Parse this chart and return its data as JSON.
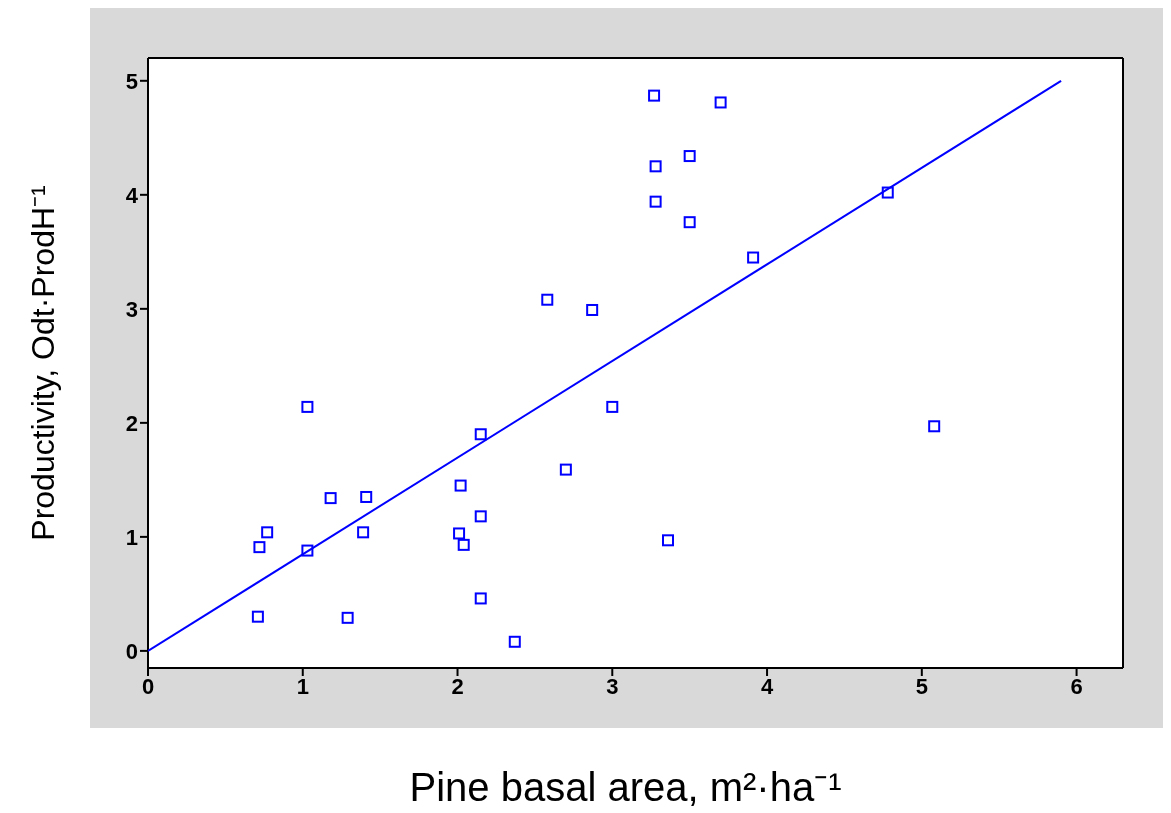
{
  "chart_data": {
    "type": "scatter",
    "xlabel": "Pine basal area, m²·ha⁻¹",
    "ylabel": "Productivity, Odt·ProdH⁻¹",
    "xlim": [
      0,
      6.3
    ],
    "xticks": [
      0,
      1,
      2,
      3,
      4,
      5,
      6
    ],
    "ylim": [
      -0.15,
      5.2
    ],
    "yticks": [
      0,
      1,
      2,
      3,
      4,
      5
    ],
    "series": [
      {
        "color": "#0000ff",
        "marker": "square",
        "x": [
          0.71,
          0.72,
          0.77,
          1.03,
          1.03,
          1.18,
          1.29,
          1.39,
          1.41,
          2.01,
          2.02,
          2.04,
          2.15,
          2.15,
          2.15,
          2.37,
          2.58,
          2.7,
          2.87,
          3.0,
          3.27,
          3.28,
          3.28,
          3.36,
          3.5,
          3.5,
          3.7,
          3.91,
          4.78,
          5.08
        ],
        "values": [
          0.3,
          0.91,
          1.04,
          2.14,
          0.88,
          1.34,
          0.29,
          1.04,
          1.35,
          1.03,
          1.45,
          0.93,
          1.9,
          1.18,
          0.46,
          0.08,
          3.08,
          1.59,
          2.99,
          2.14,
          4.87,
          4.25,
          3.94,
          0.97,
          4.34,
          3.76,
          4.81,
          3.45,
          4.02,
          1.97
        ]
      },
      {
        "type": "line",
        "color": "#0000ff",
        "line_style": "solid",
        "marker": "none",
        "x": [
          0,
          5.9
        ],
        "values": [
          0,
          5.0
        ]
      }
    ]
  }
}
